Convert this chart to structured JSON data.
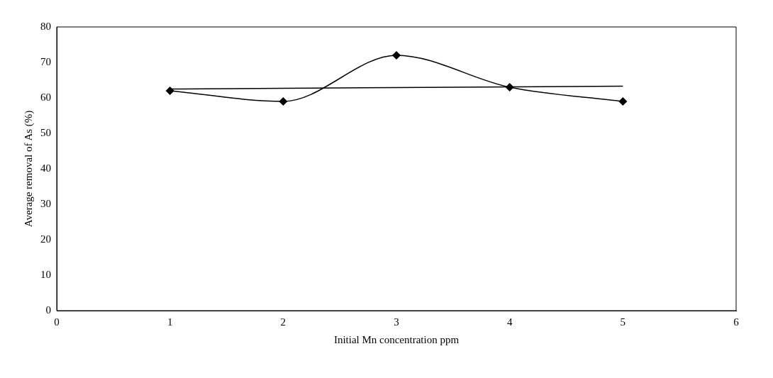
{
  "chart_data": {
    "type": "line",
    "xlabel": "Initial Mn concentration ppm",
    "ylabel": "Average removal of As (%)",
    "x": [
      1,
      2,
      3,
      4,
      5
    ],
    "series": [
      {
        "color": "#000000",
        "values": [
          62,
          59,
          72,
          63,
          59
        ],
        "marker": "diamond"
      },
      {
        "type": "line",
        "color": "#000000",
        "x": [
          1,
          5
        ],
        "values": [
          62.5,
          63.3
        ],
        "marker": "none"
      }
    ],
    "xlim": [
      0,
      6
    ],
    "xticks": [
      0,
      1,
      2,
      3,
      4,
      5,
      6
    ],
    "ylim": [
      0,
      80
    ],
    "yticks": [
      0,
      10,
      20,
      30,
      40,
      50,
      60,
      70,
      80
    ],
    "grid": false,
    "legend": false,
    "line_style": "solid"
  }
}
